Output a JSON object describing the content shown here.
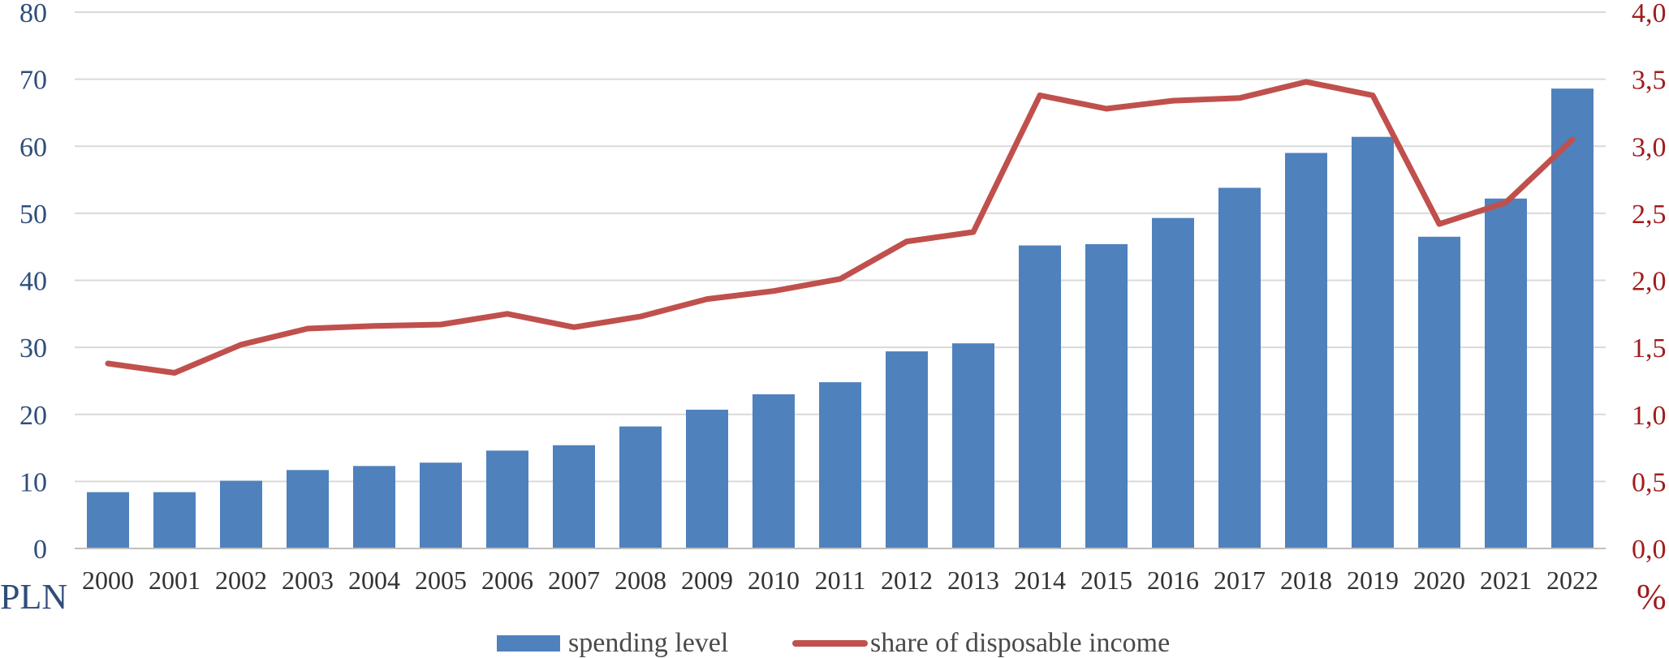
{
  "colors": {
    "bar": "#4f81bd",
    "line": "#c0504d",
    "grid": "#d9d9d9",
    "left_axis_text": "#2f4d7a",
    "right_axis_text": "#a01c1c"
  },
  "chart_data": {
    "type": "bar",
    "title": "",
    "categories": [
      "2000",
      "2001",
      "2002",
      "2003",
      "2004",
      "2005",
      "2006",
      "2007",
      "2008",
      "2009",
      "2010",
      "2011",
      "2012",
      "2013",
      "2014",
      "2015",
      "2016",
      "2017",
      "2018",
      "2019",
      "2020",
      "2021",
      "2022"
    ],
    "series": [
      {
        "name": "spending level",
        "type": "bar",
        "axis": "left",
        "values": [
          8.4,
          8.4,
          10.1,
          11.7,
          12.3,
          12.8,
          14.6,
          15.4,
          18.2,
          20.7,
          23.0,
          24.8,
          29.4,
          30.6,
          45.2,
          45.4,
          49.3,
          53.8,
          59.0,
          61.4,
          46.5,
          52.2,
          68.6
        ]
      },
      {
        "name": "share of disposable income",
        "type": "line",
        "axis": "right",
        "values": [
          1.38,
          1.31,
          1.52,
          1.64,
          1.66,
          1.67,
          1.75,
          1.65,
          1.73,
          1.86,
          1.92,
          2.01,
          2.29,
          2.36,
          3.38,
          3.28,
          3.34,
          3.36,
          3.48,
          3.38,
          2.42,
          2.58,
          3.05
        ]
      }
    ],
    "y_left": {
      "unit_label": "PLN",
      "ylim": [
        0,
        80
      ],
      "ticks": [
        "0",
        "10",
        "20",
        "30",
        "40",
        "50",
        "60",
        "70",
        "80"
      ]
    },
    "y_right": {
      "unit_label": "%",
      "ylim": [
        0,
        4
      ],
      "ticks": [
        "0,0",
        "0,5",
        "1,0",
        "1,5",
        "2,0",
        "2,5",
        "3,0",
        "3,5",
        "4,0"
      ]
    },
    "grid": true,
    "legend_position": "bottom"
  }
}
